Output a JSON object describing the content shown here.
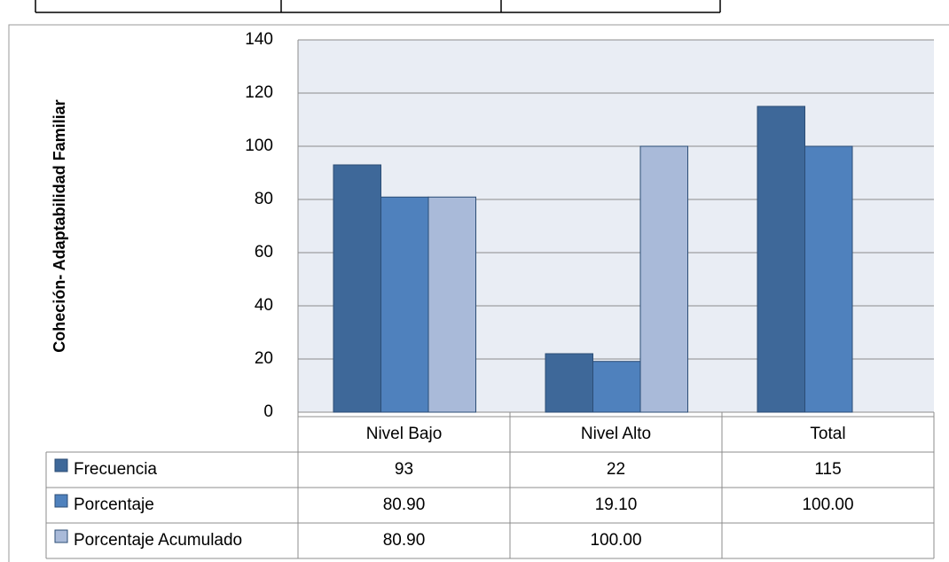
{
  "chart_data": {
    "type": "bar",
    "ylabel": "Coheción- Adaptabilidad Familiar",
    "categories": [
      "Nivel Bajo",
      "Nivel Alto",
      "Total"
    ],
    "series": [
      {
        "name": "Frecuencia",
        "color": "#3e6899",
        "values": [
          93,
          22,
          115
        ]
      },
      {
        "name": "Porcentaje",
        "color": "#4f81bd",
        "values": [
          80.9,
          19.1,
          100
        ],
        "value_labels": [
          "80.90",
          "19.10",
          "100.00"
        ]
      },
      {
        "name": "Porcentaje Acumulado",
        "color": "#a9bad9",
        "values": [
          80.9,
          100,
          null
        ],
        "value_labels": [
          "80.90",
          "100.00",
          null
        ]
      }
    ],
    "ylim": [
      0,
      140
    ],
    "yticks": [
      0,
      20,
      40,
      60,
      80,
      100,
      120,
      140
    ],
    "grid": true
  }
}
